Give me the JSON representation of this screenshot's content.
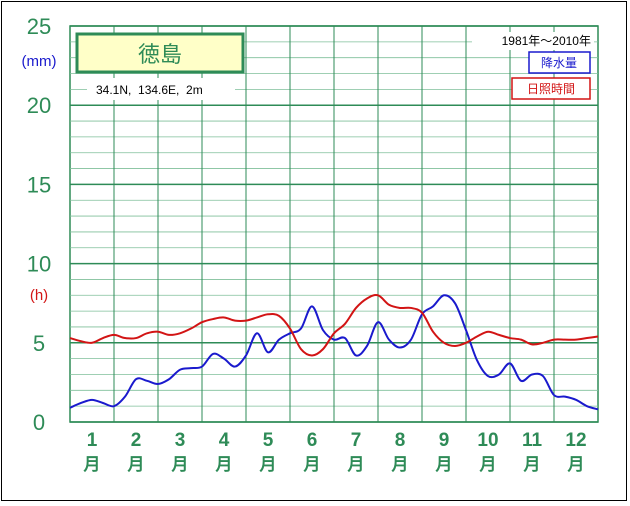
{
  "chart_data": {
    "type": "line",
    "station": {
      "name": "徳島",
      "coords": "34.1N,  134.6E,  2m",
      "period": "1981年〜2010年"
    },
    "y_axis": {
      "ticks": [
        "25",
        "20",
        "15",
        "10",
        "5",
        "0"
      ],
      "unit_precip": "(mm)",
      "unit_sun": "(h)",
      "ylim": [
        0,
        25
      ]
    },
    "x_axis": {
      "month_numbers": [
        "1",
        "2",
        "3",
        "4",
        "5",
        "6",
        "7",
        "8",
        "9",
        "10",
        "11",
        "12"
      ],
      "month_suffix": "月"
    },
    "legend": {
      "precip": "降水量",
      "sun": "日照時間"
    },
    "series": [
      {
        "name": "降水量",
        "color": "#1a1acd",
        "x": [
          0.0,
          0.25,
          0.5,
          0.75,
          1.0,
          1.25,
          1.5,
          1.75,
          2.0,
          2.25,
          2.5,
          2.75,
          3.0,
          3.25,
          3.5,
          3.75,
          4.0,
          4.25,
          4.5,
          4.75,
          5.0,
          5.25,
          5.5,
          5.75,
          6.0,
          6.25,
          6.5,
          6.75,
          7.0,
          7.25,
          7.5,
          7.75,
          8.0,
          8.25,
          8.5,
          8.75,
          9.0,
          9.25,
          9.5,
          9.75,
          10.0,
          10.25,
          10.5,
          10.75,
          11.0,
          11.25,
          11.5,
          11.75,
          12.0
        ],
        "values": [
          0.9,
          1.2,
          1.4,
          1.2,
          1.0,
          1.6,
          2.7,
          2.6,
          2.4,
          2.7,
          3.3,
          3.4,
          3.5,
          4.3,
          4.0,
          3.5,
          4.2,
          5.6,
          4.4,
          5.2,
          5.6,
          5.9,
          7.3,
          5.8,
          5.2,
          5.3,
          4.2,
          4.8,
          6.3,
          5.2,
          4.7,
          5.2,
          6.8,
          7.3,
          8.0,
          7.5,
          5.8,
          3.9,
          2.9,
          3.0,
          3.7,
          2.6,
          3.0,
          2.9,
          1.7,
          1.6,
          1.4,
          1.0,
          0.8
        ]
      },
      {
        "name": "日照時間",
        "color": "#d21414",
        "x": [
          0.0,
          0.25,
          0.5,
          0.75,
          1.0,
          1.25,
          1.5,
          1.75,
          2.0,
          2.25,
          2.5,
          2.75,
          3.0,
          3.25,
          3.5,
          3.75,
          4.0,
          4.25,
          4.5,
          4.75,
          5.0,
          5.25,
          5.5,
          5.75,
          6.0,
          6.25,
          6.5,
          6.75,
          7.0,
          7.25,
          7.5,
          7.75,
          8.0,
          8.25,
          8.5,
          8.75,
          9.0,
          9.25,
          9.5,
          9.75,
          10.0,
          10.25,
          10.5,
          10.75,
          11.0,
          11.25,
          11.5,
          11.75,
          12.0
        ],
        "values": [
          5.3,
          5.1,
          5.0,
          5.3,
          5.5,
          5.3,
          5.3,
          5.6,
          5.7,
          5.5,
          5.6,
          5.9,
          6.3,
          6.5,
          6.6,
          6.4,
          6.4,
          6.6,
          6.8,
          6.7,
          5.9,
          4.6,
          4.2,
          4.6,
          5.6,
          6.2,
          7.2,
          7.8,
          8.0,
          7.4,
          7.2,
          7.2,
          6.9,
          5.7,
          5.0,
          4.8,
          5.0,
          5.4,
          5.7,
          5.5,
          5.3,
          5.2,
          4.9,
          5.0,
          5.2,
          5.2,
          5.2,
          5.3,
          5.4
        ]
      }
    ]
  }
}
